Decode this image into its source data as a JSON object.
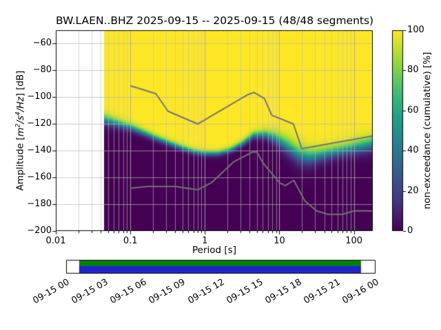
{
  "title": "BW.LAEN..BHZ  2025-09-15 -- 2025-09-15  (48/48 segments)",
  "axes": {
    "xlabel": "Period [s]",
    "ylabel": {
      "pre": "Amplitude [",
      "m": "m",
      "m_exp": "2",
      "s": "/s",
      "s_exp": "4",
      "hz": "/Hz",
      "post": "] [dB]"
    },
    "x_ticks": [
      {
        "label": "0.01",
        "value": 0.01
      },
      {
        "label": "0.1",
        "value": 0.1
      },
      {
        "label": "1",
        "value": 1
      },
      {
        "label": "10",
        "value": 10
      },
      {
        "label": "100",
        "value": 100
      }
    ],
    "y_ticks": [
      {
        "label": "−60",
        "value": -60
      },
      {
        "label": "−80",
        "value": -80
      },
      {
        "label": "−100",
        "value": -100
      },
      {
        "label": "−120",
        "value": -120
      },
      {
        "label": "−140",
        "value": -140
      },
      {
        "label": "−160",
        "value": -160
      },
      {
        "label": "−180",
        "value": -180
      },
      {
        "label": "−200",
        "value": -200
      }
    ]
  },
  "colorbar": {
    "label": "non-exceedance (cumulative) [%]",
    "ticks": [
      {
        "label": "0",
        "value": 0
      },
      {
        "label": "20",
        "value": 20
      },
      {
        "label": "40",
        "value": 40
      },
      {
        "label": "60",
        "value": 60
      },
      {
        "label": "80",
        "value": 80
      },
      {
        "label": "100",
        "value": 100
      }
    ],
    "colormap": "viridis",
    "stops": [
      "#440154",
      "#46327e",
      "#365c8d",
      "#277f8e",
      "#1fa187",
      "#4ac16d",
      "#a0da39",
      "#fde725"
    ]
  },
  "chart_data": {
    "type": "heatmap",
    "title": "BW.LAEN..BHZ  2025-09-15 -- 2025-09-15  (48/48 segments)",
    "station": "BW.LAEN..BHZ",
    "date_start": "2025-09-15",
    "date_end": "2025-09-15",
    "segments_used": 48,
    "segments_total": 48,
    "xlabel": "Period [s]",
    "ylabel": "Amplitude [m^2/s^4/Hz] [dB]",
    "zlabel": "non-exceedance (cumulative) [%]",
    "xscale": "log",
    "xlim": [
      0.01,
      179
    ],
    "ylim": [
      -200,
      -50
    ],
    "zlim": [
      0,
      100
    ],
    "grid": true,
    "data_period_min": 0.044,
    "median_curve": {
      "periods": [
        0.045,
        0.06,
        0.08,
        0.1,
        0.15,
        0.22,
        0.32,
        0.5,
        0.7,
        1.0,
        1.5,
        2.2,
        3.2,
        4.5,
        6.5,
        9,
        13,
        18,
        25,
        35,
        50,
        75,
        110,
        179
      ],
      "db": [
        -117,
        -119,
        -121,
        -122.5,
        -126.5,
        -130.5,
        -134,
        -138,
        -140.5,
        -142,
        -142,
        -139.5,
        -134.5,
        -128.5,
        -128,
        -131,
        -137,
        -143,
        -145,
        -143.5,
        -141.5,
        -139.5,
        -137.5,
        -135
      ]
    },
    "spread_sigma_db": {
      "periods": [
        0.045,
        0.06,
        0.08,
        0.1,
        0.15,
        0.22,
        0.32,
        0.5,
        0.7,
        1.0,
        1.5,
        2.2,
        3.2,
        4.5,
        6.5,
        9,
        13,
        18,
        25,
        35,
        50,
        75,
        110,
        179
      ],
      "sigma": [
        4,
        3.5,
        3,
        2.8,
        2.5,
        2.3,
        2.2,
        2.1,
        2,
        2,
        2,
        2.1,
        2.3,
        2.6,
        3.2,
        4.5,
        6,
        6.5,
        6,
        5,
        4.5,
        4.5,
        5,
        5.5
      ]
    },
    "noise_models": {
      "high_noise_model": {
        "periods": [
          0.1,
          0.22,
          0.32,
          0.8,
          3.8,
          4.6,
          6.3,
          7.9,
          15.4,
          20,
          179
        ],
        "db": [
          -91.5,
          -97.4,
          -110.5,
          -120,
          -98,
          -96.5,
          -101,
          -113.5,
          -120,
          -138.5,
          -129
        ]
      },
      "low_noise_model": {
        "periods": [
          0.1,
          0.17,
          0.4,
          0.8,
          1.24,
          2.4,
          4.3,
          5,
          6,
          10,
          12,
          15.6,
          21.9,
          31.6,
          45,
          70,
          101,
          154,
          179
        ],
        "db": [
          -168,
          -166.7,
          -166.7,
          -169.2,
          -163.7,
          -148.6,
          -141.1,
          -141.1,
          -149,
          -163.8,
          -166.2,
          -162.1,
          -177.5,
          -185,
          -187.5,
          -187.5,
          -185,
          -185,
          -185.2
        ]
      }
    }
  },
  "timeline": {
    "tick_labels": [
      "09-15 00",
      "09-15 03",
      "09-15 06",
      "09-15 09",
      "09-15 12",
      "09-15 15",
      "09-15 18",
      "09-15 21",
      "09-16 00"
    ],
    "coverage": {
      "start_frac": 0.042,
      "end_frac": 0.953,
      "bar_colors": {
        "top": "#008000",
        "bottom": "#2222cc"
      }
    }
  }
}
